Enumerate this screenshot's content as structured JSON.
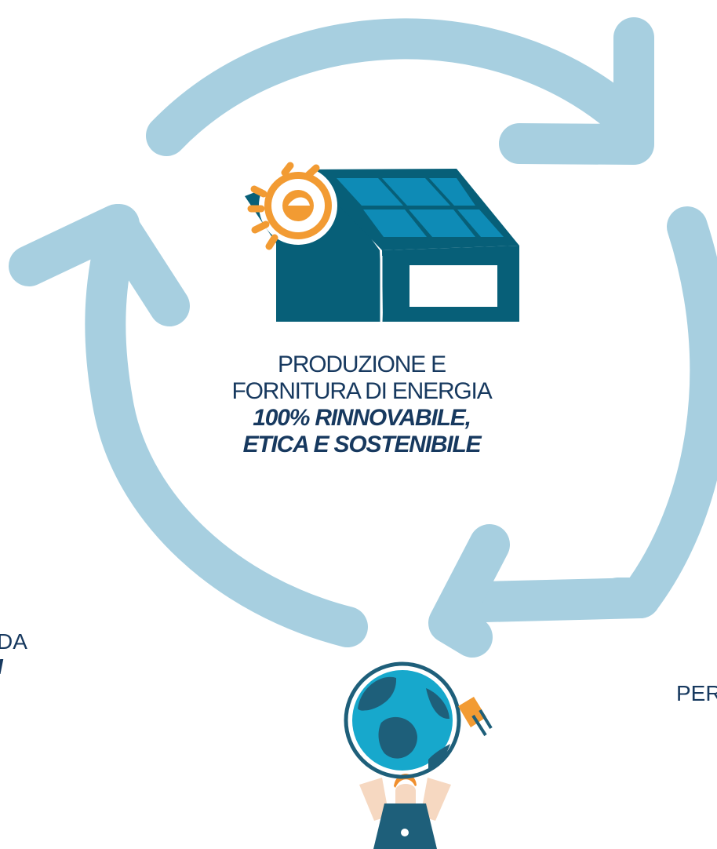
{
  "center": {
    "line1": "PRODUZIONE E",
    "line2": "FORNITURA DI ENERGIA",
    "line3": "100% RINNOVABILE,",
    "line4": "ETICA E SOSTENIBILE"
  },
  "left_fragment": {
    "line1": "DA",
    "line2": "I"
  },
  "right_fragment": {
    "line1": "PER"
  },
  "colors": {
    "cycle_arrows": "#a7cfe0",
    "house": "#075f78",
    "solar_panels": "#0e8bb6",
    "logo_orange": "#f29b33",
    "text_navy": "#17395f",
    "globe_blue": "#17a8cc",
    "globe_dark": "#1e5f7a",
    "skin": "#f6d8c1",
    "hair": "#f08f2d"
  },
  "icons": {
    "cycle": "recycle-arrows-icon",
    "house": "solar-house-icon",
    "logo": "sun-e-logo-icon",
    "globe": "globe-plug-icon",
    "person": "person-holding-globe-icon"
  }
}
